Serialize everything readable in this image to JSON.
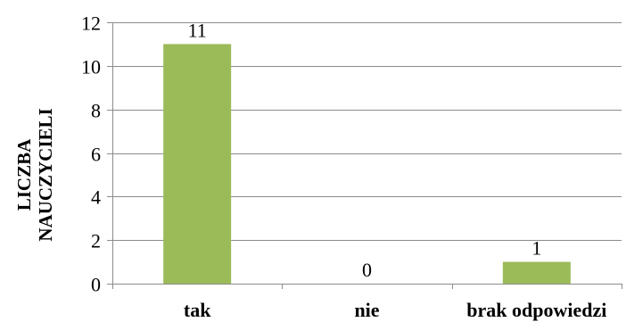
{
  "chart_data": {
    "type": "bar",
    "categories": [
      "tak",
      "nie",
      "brak odpowiedzi"
    ],
    "values": [
      11,
      0,
      1
    ],
    "data_labels": [
      "11",
      "0",
      "1"
    ],
    "title": "",
    "xlabel": "",
    "ylabel_lines": [
      "LICZBA",
      "NAUCZYCIELI"
    ],
    "ylim": [
      0,
      12
    ],
    "yticks": [
      0,
      2,
      4,
      6,
      8,
      10,
      12
    ],
    "ytick_labels": [
      "0",
      "2",
      "4",
      "6",
      "8",
      "10",
      "12"
    ],
    "grid": true,
    "legend": "none",
    "bar_color": "#9bbb59",
    "grid_color": "#8c8c8c",
    "axis_color": "#8c8c8c"
  }
}
